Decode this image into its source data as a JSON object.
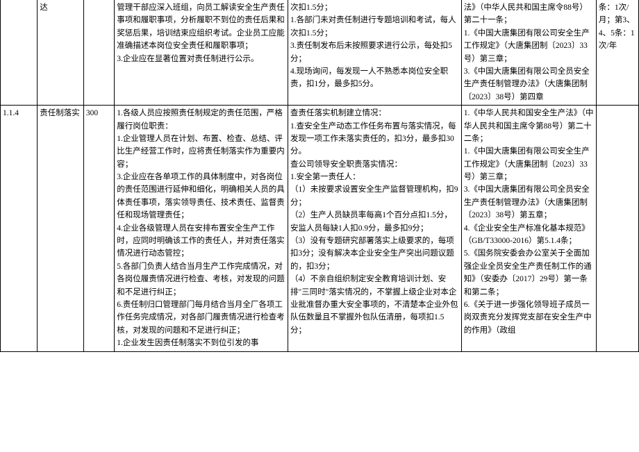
{
  "table": {
    "rows": [
      {
        "id": "",
        "name": "达",
        "score": "",
        "requirements": "管理干部应深入班组，向员工解读安全生产责任事项和履职事项，分析履职不到位的责任后果和奖惩后果，培训结束应组织考试。企业员工应能准确描述本岗位安全责任和履职事项；\n3.企业应在显著位置对责任制进行公示。",
        "criteria": "次扣1.5分；\n1.各部门未对责任制进行专题培训和考试，每人次扣1.5分；\n3.责任制发布后未按照要求进行公示，每处扣5分；\n4.现场询问，每发现一人不熟悉本岗位安全职责，扣1分，最多扣5分。",
        "basis": "法》（中华人民共和国主席令88号）第二十一条；\n1.《中国大唐集团有限公司安全生产工作规定》（大唐集团制〔2023〕33号）第三章；\n3.《中国大唐集团有限公司全员安全生产责任制管理办法》（大唐集团制〔2023〕38号）第四章",
        "freq": "条：1次/月；第3、4、5条：1次/年"
      },
      {
        "id": "1.1.4",
        "name": "责任制落实",
        "score": "300",
        "requirements": "1.各级人员应按照责任制规定的责任范围，严格履行岗位职责：\n1.企业管理人员在计划、布置、检查、总结、评比生产经营工作时，应将责任制落实作为重要内容；\n3.企业应在各单项工作的具体制度中，对各岗位的责任范围进行延伸和细化，明确相关人员的具体责任事项，落实领导责任、技术责任、监督责任和现场管理责任；\n4.企业各级管理人员在安排布置安全生产工作时，应同时明确该工作的责任人，并对责任落实情况进行动态管控；\n5.各部门负责人结合当月生产工作完成情况，对各岗位履责情况进行检查、考核，对发现的问题和不足进行纠正；\n6.责任制归口管理部门每月结合当月全厂各项工作任务完成情况，对各部门履责情况进行检查考核，对发现的问题和不足进行纠正；\n1.企业发生因责任制落实不到位引发的事",
        "criteria": "查责任落实机制建立情况：\n1.查安全生产动态工作任务布置与落实情况，每发现一项工作未落实责任的，扣3分，最多扣30分。\n查公司领导安全职责落实情况：\n1.安全第一责任人：\n（1）未按要求设置安全生产监督管理机构，扣9分；\n（2）生产人员缺员率每高1个百分点扣1.5分，安监人员每缺1人扣0.9分，最多扣9分；\n（3）没有专题研究部署落实上级要求的，每项扣3分；没有解决本企业安全生产突出问题议题的，扣3分；\n（4）不亲自组织制定安全教育培训计划、安排\"三同时\"落实情况的，不掌握上级企业对本企业批准督办重大安全事项的，不清楚本企业外包队伍数量且不掌握外包队伍清册，每项扣1.5分；",
        "basis": "1.《中华人民共和国安全生产法》（中华人民共和国主席令第88号）第二十二条；\n1.《中国大唐集团有限公司安全生产工作规定》（大唐集团制〔2023〕33号）第三章；\n3.《中国大唐集团有限公司全员安全生产责任制管理办法》（大唐集团制〔2023〕38号）第五章；\n4.《企业安全生产标准化基本规范》（GB/T33000-2016）第5.1.4条；\n5.《国务院安委会办公室关于全面加强企业全员安全生产责任制工作的通知》（安委办〔2017〕29号）第一条和第二条；\n6.《关于进一步强化领导班子成员一岗双责充分发挥党支部在安全生产中的作用》（政组",
        "freq": ""
      }
    ]
  }
}
